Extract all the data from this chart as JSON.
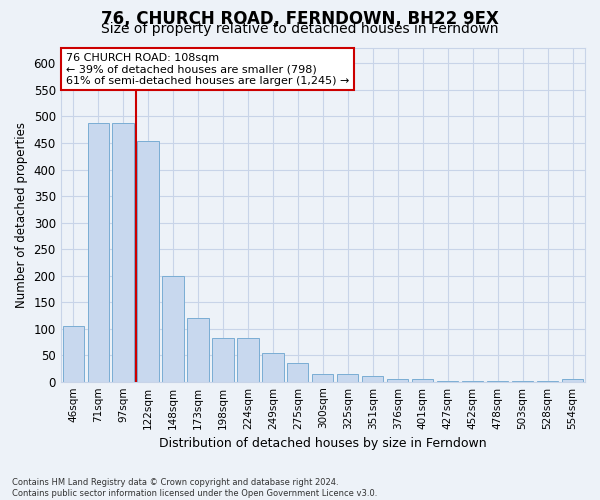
{
  "title": "76, CHURCH ROAD, FERNDOWN, BH22 9EX",
  "subtitle": "Size of property relative to detached houses in Ferndown",
  "xlabel": "Distribution of detached houses by size in Ferndown",
  "ylabel": "Number of detached properties",
  "categories": [
    "46sqm",
    "71sqm",
    "97sqm",
    "122sqm",
    "148sqm",
    "173sqm",
    "198sqm",
    "224sqm",
    "249sqm",
    "275sqm",
    "300sqm",
    "325sqm",
    "351sqm",
    "376sqm",
    "401sqm",
    "427sqm",
    "452sqm",
    "478sqm",
    "503sqm",
    "528sqm",
    "554sqm"
  ],
  "values": [
    105,
    487,
    487,
    453,
    200,
    120,
    82,
    82,
    55,
    35,
    15,
    15,
    10,
    5,
    5,
    2,
    2,
    1,
    1,
    1,
    5
  ],
  "bar_color": "#c8d8ee",
  "bar_edge_color": "#7aadd4",
  "red_line_x": 2.5,
  "annotation_line1": "76 CHURCH ROAD: 108sqm",
  "annotation_line2": "← 39% of detached houses are smaller (798)",
  "annotation_line3": "61% of semi-detached houses are larger (1,245) →",
  "annotation_box_color": "#ffffff",
  "annotation_box_edge": "#cc0000",
  "grid_color": "#c8d4e8",
  "bg_color": "#edf2f8",
  "plot_bg_color": "#edf2f8",
  "footer": "Contains HM Land Registry data © Crown copyright and database right 2024.\nContains public sector information licensed under the Open Government Licence v3.0.",
  "ylim": [
    0,
    630
  ],
  "yticks": [
    0,
    50,
    100,
    150,
    200,
    250,
    300,
    350,
    400,
    450,
    500,
    550,
    600
  ],
  "red_line_color": "#cc0000",
  "title_fontsize": 12,
  "subtitle_fontsize": 10
}
